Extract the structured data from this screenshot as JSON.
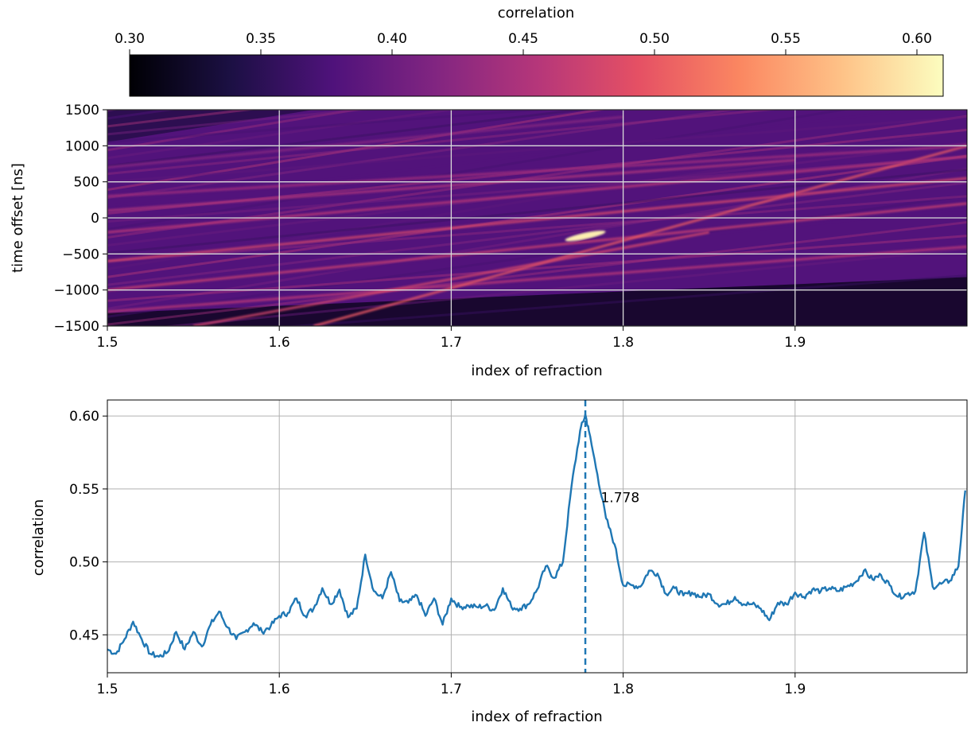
{
  "colorbar": {
    "label": "correlation",
    "range": [
      0.3,
      0.61
    ],
    "ticks": [
      "0.30",
      "0.35",
      "0.40",
      "0.45",
      "0.50",
      "0.55",
      "0.60"
    ],
    "colormap": "magma",
    "stops": [
      "#000004",
      "#1c1044",
      "#4f127b",
      "#812581",
      "#b5367a",
      "#e55064",
      "#fb8761",
      "#fec287",
      "#fcfdbf"
    ]
  },
  "chart_data": [
    {
      "type": "heatmap",
      "name": "correlation-heatmap",
      "xlabel": "index of refraction",
      "ylabel": "time offset [ns]",
      "xlim": [
        1.5,
        2.0
      ],
      "ylim": [
        -1500,
        1500
      ],
      "xticks": [
        "1.5",
        "1.6",
        "1.7",
        "1.8",
        "1.9"
      ],
      "yticks": [
        "1500",
        "1000",
        "500",
        "0",
        "−500",
        "−1000",
        "−1500"
      ],
      "grid": true,
      "colormap": "magma",
      "value_range": [
        0.3,
        0.61
      ],
      "ridges": [
        {
          "from": [
            1.5,
            -1300
          ],
          "to": [
            2.0,
            -400
          ],
          "value": 0.46
        },
        {
          "from": [
            1.5,
            -1000
          ],
          "to": [
            2.0,
            200
          ],
          "value": 0.47
        },
        {
          "from": [
            1.62,
            -1500
          ],
          "to": [
            2.0,
            1000
          ],
          "value": 0.5
        },
        {
          "from": [
            1.5,
            -600
          ],
          "to": [
            2.0,
            550
          ],
          "value": 0.48
        },
        {
          "from": [
            1.5,
            -200
          ],
          "to": [
            2.0,
            850
          ],
          "value": 0.46
        },
        {
          "from": [
            1.5,
            300
          ],
          "to": [
            2.0,
            1000
          ],
          "value": 0.44
        },
        {
          "from": [
            1.55,
            -1500
          ],
          "to": [
            1.85,
            -200
          ],
          "value": 0.48
        },
        {
          "from": [
            1.5,
            700
          ],
          "to": [
            1.8,
            1400
          ],
          "value": 0.42
        },
        {
          "from": [
            1.5,
            100
          ],
          "to": [
            1.9,
            800
          ],
          "value": 0.45
        },
        {
          "from": [
            1.6,
            950
          ],
          "to": [
            2.0,
            950
          ],
          "value": 0.44
        }
      ],
      "peak": {
        "x": 1.778,
        "y": -250,
        "value": 0.6
      }
    },
    {
      "type": "line",
      "name": "correlation-vs-index",
      "xlabel": "index of refraction",
      "ylabel": "correlation",
      "xlim": [
        1.5,
        2.0
      ],
      "ylim": [
        0.424,
        0.611
      ],
      "xticks": [
        "1.5",
        "1.6",
        "1.7",
        "1.8",
        "1.9"
      ],
      "yticks": [
        "0.60",
        "0.55",
        "0.50",
        "0.45"
      ],
      "grid": true,
      "color": "#1f77b4",
      "x": [
        1.5,
        1.505,
        1.51,
        1.515,
        1.52,
        1.525,
        1.53,
        1.535,
        1.54,
        1.545,
        1.55,
        1.555,
        1.56,
        1.565,
        1.57,
        1.575,
        1.58,
        1.585,
        1.59,
        1.595,
        1.6,
        1.605,
        1.61,
        1.615,
        1.62,
        1.625,
        1.63,
        1.635,
        1.64,
        1.645,
        1.65,
        1.655,
        1.66,
        1.665,
        1.67,
        1.675,
        1.68,
        1.685,
        1.69,
        1.695,
        1.7,
        1.705,
        1.71,
        1.715,
        1.72,
        1.725,
        1.73,
        1.735,
        1.74,
        1.745,
        1.75,
        1.755,
        1.76,
        1.765,
        1.77,
        1.775,
        1.778,
        1.78,
        1.785,
        1.79,
        1.795,
        1.8,
        1.805,
        1.81,
        1.815,
        1.82,
        1.825,
        1.83,
        1.835,
        1.84,
        1.845,
        1.85,
        1.855,
        1.86,
        1.865,
        1.87,
        1.875,
        1.88,
        1.885,
        1.89,
        1.895,
        1.9,
        1.905,
        1.91,
        1.915,
        1.92,
        1.925,
        1.93,
        1.935,
        1.94,
        1.945,
        1.95,
        1.955,
        1.96,
        1.965,
        1.97,
        1.975,
        1.98,
        1.985,
        1.99,
        1.995,
        1.999
      ],
      "y": [
        0.44,
        0.437,
        0.447,
        0.459,
        0.447,
        0.437,
        0.435,
        0.438,
        0.452,
        0.44,
        0.452,
        0.442,
        0.457,
        0.466,
        0.455,
        0.447,
        0.452,
        0.458,
        0.452,
        0.456,
        0.463,
        0.465,
        0.475,
        0.463,
        0.468,
        0.482,
        0.471,
        0.481,
        0.462,
        0.468,
        0.505,
        0.48,
        0.475,
        0.493,
        0.473,
        0.472,
        0.477,
        0.463,
        0.475,
        0.457,
        0.475,
        0.469,
        0.47,
        0.469,
        0.47,
        0.467,
        0.482,
        0.469,
        0.468,
        0.471,
        0.481,
        0.497,
        0.489,
        0.5,
        0.552,
        0.59,
        0.601,
        0.59,
        0.56,
        0.53,
        0.512,
        0.484,
        0.484,
        0.483,
        0.494,
        0.492,
        0.478,
        0.482,
        0.477,
        0.479,
        0.476,
        0.478,
        0.471,
        0.471,
        0.476,
        0.471,
        0.471,
        0.468,
        0.46,
        0.472,
        0.471,
        0.479,
        0.476,
        0.481,
        0.48,
        0.482,
        0.48,
        0.483,
        0.486,
        0.494,
        0.488,
        0.491,
        0.484,
        0.476,
        0.478,
        0.48,
        0.52,
        0.483,
        0.485,
        0.487,
        0.497,
        0.549
      ],
      "marker_line": {
        "x": 1.778,
        "style": "dashed"
      },
      "annotation": {
        "text": "1.778",
        "x": 1.787,
        "y": 0.541
      }
    }
  ]
}
